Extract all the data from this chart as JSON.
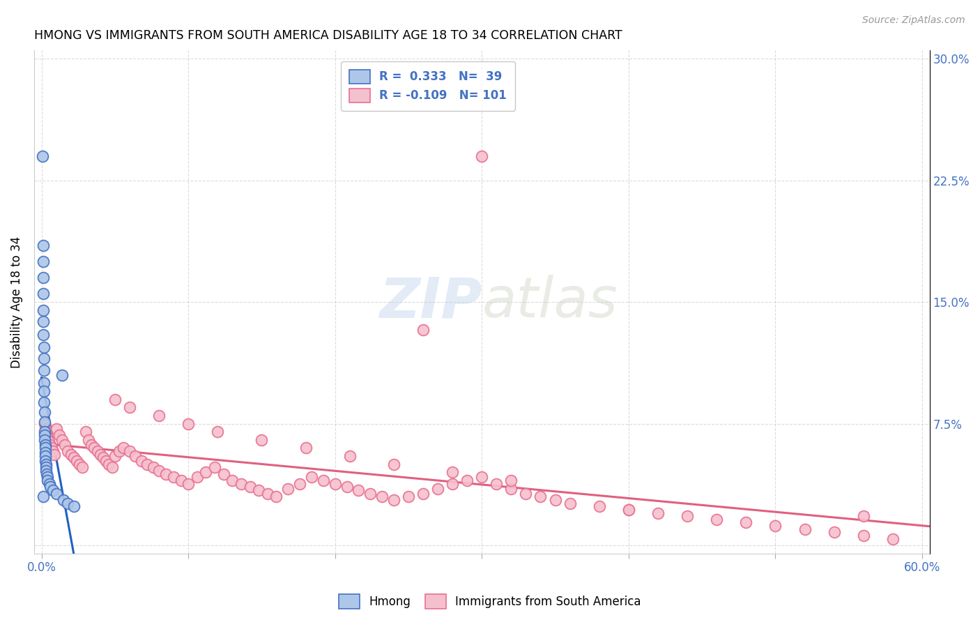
{
  "title": "HMONG VS IMMIGRANTS FROM SOUTH AMERICA DISABILITY AGE 18 TO 34 CORRELATION CHART",
  "source": "Source: ZipAtlas.com",
  "ylabel": "Disability Age 18 to 34",
  "xlim": [
    -0.005,
    0.605
  ],
  "ylim": [
    -0.005,
    0.305
  ],
  "xticks": [
    0.0,
    0.1,
    0.2,
    0.3,
    0.4,
    0.5,
    0.6
  ],
  "xticklabels": [
    "0.0%",
    "",
    "",
    "",
    "",
    "",
    "60.0%"
  ],
  "yticks": [
    0.0,
    0.075,
    0.15,
    0.225,
    0.3
  ],
  "yticklabels_right": [
    "",
    "7.5%",
    "15.0%",
    "22.5%",
    "30.0%"
  ],
  "hmong_color": "#aec6e8",
  "hmong_edge_color": "#4472c4",
  "sa_color": "#f5c0ce",
  "sa_edge_color": "#e87090",
  "hmong_R": 0.333,
  "hmong_N": 39,
  "sa_R": -0.109,
  "sa_N": 101,
  "legend_text_color": "#4472c4",
  "watermark_color": "#d0dff0",
  "background_color": "#ffffff",
  "grid_color": "#cccccc",
  "hmong_x": [
    0.0008,
    0.001,
    0.001,
    0.001,
    0.0012,
    0.0012,
    0.0013,
    0.0014,
    0.0015,
    0.0015,
    0.0016,
    0.0016,
    0.0018,
    0.0018,
    0.002,
    0.002,
    0.002,
    0.0022,
    0.0022,
    0.0024,
    0.0025,
    0.0025,
    0.0026,
    0.0028,
    0.003,
    0.003,
    0.0032,
    0.0034,
    0.004,
    0.0042,
    0.0055,
    0.006,
    0.008,
    0.01,
    0.015,
    0.018,
    0.022,
    0.014,
    0.001
  ],
  "hmong_y": [
    0.24,
    0.185,
    0.175,
    0.165,
    0.155,
    0.145,
    0.138,
    0.13,
    0.122,
    0.115,
    0.108,
    0.1,
    0.095,
    0.088,
    0.082,
    0.076,
    0.07,
    0.068,
    0.065,
    0.062,
    0.06,
    0.057,
    0.055,
    0.052,
    0.05,
    0.048,
    0.046,
    0.044,
    0.042,
    0.04,
    0.038,
    0.036,
    0.034,
    0.032,
    0.028,
    0.026,
    0.024,
    0.105,
    0.03
  ],
  "sa_x": [
    0.002,
    0.0025,
    0.003,
    0.0035,
    0.004,
    0.005,
    0.006,
    0.007,
    0.008,
    0.009,
    0.01,
    0.012,
    0.014,
    0.016,
    0.018,
    0.02,
    0.022,
    0.024,
    0.026,
    0.028,
    0.03,
    0.032,
    0.034,
    0.036,
    0.038,
    0.04,
    0.042,
    0.044,
    0.046,
    0.048,
    0.05,
    0.053,
    0.056,
    0.06,
    0.064,
    0.068,
    0.072,
    0.076,
    0.08,
    0.085,
    0.09,
    0.095,
    0.1,
    0.106,
    0.112,
    0.118,
    0.124,
    0.13,
    0.136,
    0.142,
    0.148,
    0.154,
    0.16,
    0.168,
    0.176,
    0.184,
    0.192,
    0.2,
    0.208,
    0.216,
    0.224,
    0.232,
    0.24,
    0.25,
    0.26,
    0.27,
    0.28,
    0.29,
    0.3,
    0.31,
    0.32,
    0.33,
    0.34,
    0.35,
    0.36,
    0.38,
    0.4,
    0.42,
    0.44,
    0.46,
    0.48,
    0.5,
    0.52,
    0.54,
    0.56,
    0.58,
    0.3,
    0.26,
    0.05,
    0.06,
    0.08,
    0.1,
    0.12,
    0.15,
    0.18,
    0.21,
    0.24,
    0.28,
    0.32,
    0.4,
    0.56
  ],
  "sa_y": [
    0.075,
    0.072,
    0.07,
    0.068,
    0.066,
    0.064,
    0.062,
    0.06,
    0.058,
    0.056,
    0.072,
    0.068,
    0.065,
    0.062,
    0.058,
    0.056,
    0.054,
    0.052,
    0.05,
    0.048,
    0.07,
    0.065,
    0.062,
    0.06,
    0.058,
    0.056,
    0.054,
    0.052,
    0.05,
    0.048,
    0.055,
    0.058,
    0.06,
    0.058,
    0.055,
    0.052,
    0.05,
    0.048,
    0.046,
    0.044,
    0.042,
    0.04,
    0.038,
    0.042,
    0.045,
    0.048,
    0.044,
    0.04,
    0.038,
    0.036,
    0.034,
    0.032,
    0.03,
    0.035,
    0.038,
    0.042,
    0.04,
    0.038,
    0.036,
    0.034,
    0.032,
    0.03,
    0.028,
    0.03,
    0.032,
    0.035,
    0.038,
    0.04,
    0.042,
    0.038,
    0.035,
    0.032,
    0.03,
    0.028,
    0.026,
    0.024,
    0.022,
    0.02,
    0.018,
    0.016,
    0.014,
    0.012,
    0.01,
    0.008,
    0.006,
    0.004,
    0.24,
    0.133,
    0.09,
    0.085,
    0.08,
    0.075,
    0.07,
    0.065,
    0.06,
    0.055,
    0.05,
    0.045,
    0.04,
    0.022,
    0.018
  ]
}
